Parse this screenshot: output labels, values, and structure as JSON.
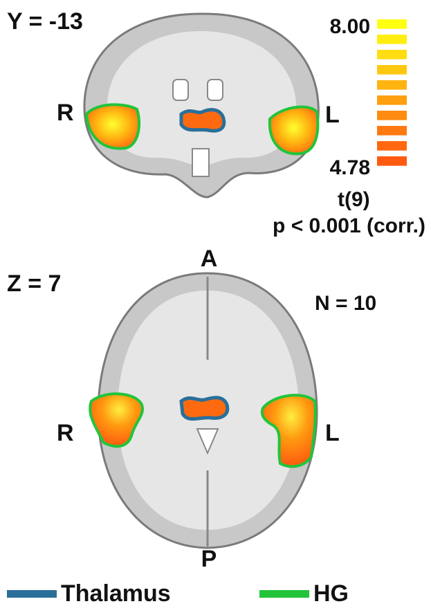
{
  "coronal": {
    "label": "Y = -13",
    "right": "R",
    "left": "L"
  },
  "axial": {
    "label": "Z = 7",
    "right": "R",
    "left": "L",
    "anterior": "A",
    "posterior": "P"
  },
  "colorbar": {
    "max": "8.00",
    "min": "4.78",
    "stat": "t(9)",
    "threshold": "p < 0.001 (corr.)",
    "colors": [
      "#ffff10",
      "#ffee10",
      "#ffdd10",
      "#ffc810",
      "#ffb410",
      "#ffa010",
      "#ff8c10",
      "#ff7810",
      "#ff6810",
      "#ff5a10"
    ]
  },
  "sample": "N = 10",
  "legend": [
    {
      "name": "Thalamus",
      "color": "#2a6f9a"
    },
    {
      "name": "HG",
      "color": "#22c43a"
    }
  ]
}
